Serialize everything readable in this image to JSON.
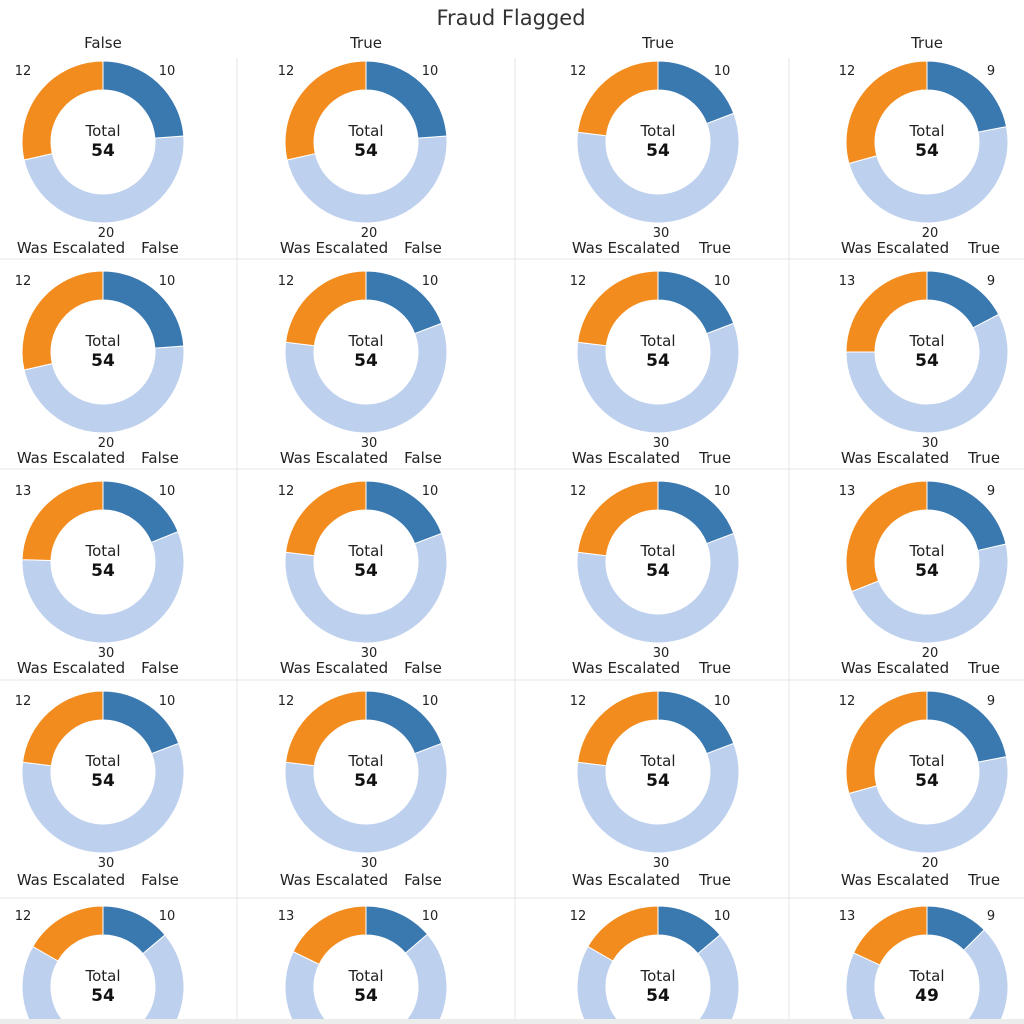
{
  "chart_data": {
    "type": "donut-grid",
    "title": "Fraud Flagged",
    "column_headers": [
      "False",
      "True",
      "True",
      "True"
    ],
    "row_label": "Was Escalated",
    "segment_colors": {
      "dark_blue": "#3a78b0",
      "orange": "#f38c1f",
      "light_blue": "#bdd0ee"
    },
    "center_label": "Total",
    "cells": [
      [
        {
          "blue": 10,
          "light": 20,
          "orange": 12,
          "total": "54",
          "row_value": "False"
        },
        {
          "blue": 10,
          "light": 20,
          "orange": 12,
          "total": "54",
          "row_value": "False"
        },
        {
          "blue": 10,
          "light": 30,
          "orange": 12,
          "total": "54",
          "row_value": "True"
        },
        {
          "blue": 9,
          "light": 20,
          "orange": 12,
          "total": "54",
          "row_value": "True"
        }
      ],
      [
        {
          "blue": 10,
          "light": 20,
          "orange": 12,
          "total": "54",
          "row_value": "False"
        },
        {
          "blue": 10,
          "light": 30,
          "orange": 12,
          "total": "54",
          "row_value": "False"
        },
        {
          "blue": 10,
          "light": 30,
          "orange": 12,
          "total": "54",
          "row_value": "True"
        },
        {
          "blue": 9,
          "light": 30,
          "orange": 13,
          "total": "54",
          "row_value": "True"
        }
      ],
      [
        {
          "blue": 10,
          "light": 30,
          "orange": 13,
          "total": "54",
          "row_value": "False"
        },
        {
          "blue": 10,
          "light": 30,
          "orange": 12,
          "total": "54",
          "row_value": "False"
        },
        {
          "blue": 10,
          "light": 30,
          "orange": 12,
          "total": "54",
          "row_value": "True"
        },
        {
          "blue": 9,
          "light": 20,
          "orange": 13,
          "total": "54",
          "row_value": "True"
        }
      ],
      [
        {
          "blue": 10,
          "light": 30,
          "orange": 12,
          "total": "54",
          "row_value": "False"
        },
        {
          "blue": 10,
          "light": 30,
          "orange": 12,
          "total": "54",
          "row_value": "False"
        },
        {
          "blue": 10,
          "light": 30,
          "orange": 12,
          "total": "54",
          "row_value": "True"
        },
        {
          "blue": 9,
          "light": 20,
          "orange": 12,
          "total": "54",
          "row_value": "True"
        }
      ],
      [
        {
          "blue": 10,
          "light": null,
          "orange": 12,
          "total": "54",
          "row_value": null
        },
        {
          "blue": 10,
          "light": null,
          "orange": 13,
          "total": "54",
          "row_value": null
        },
        {
          "blue": 10,
          "light": null,
          "orange": 12,
          "total": "54",
          "row_value": null
        },
        {
          "blue": 9,
          "light": null,
          "orange": 13,
          "total": "49",
          "row_value": null
        }
      ]
    ]
  }
}
